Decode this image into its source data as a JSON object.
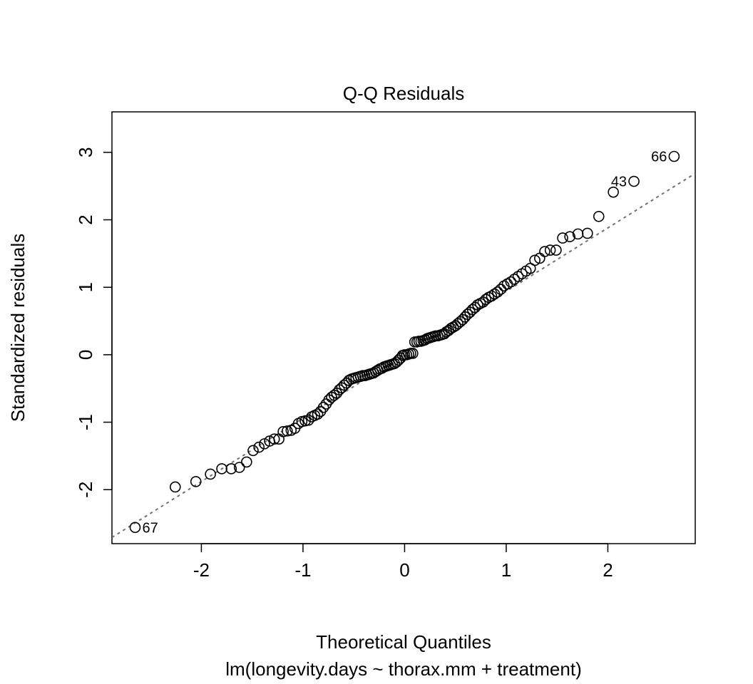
{
  "chart_data": {
    "type": "scatter",
    "title": "Q-Q Residuals",
    "xlabel": "Theoretical Quantiles",
    "subtitle": "lm(longevity.days ~ thorax.mm + treatment)",
    "ylabel": "Standardized residuals",
    "xlim": [
      -2.88,
      2.86
    ],
    "ylim": [
      -2.8,
      3.6
    ],
    "xticks": [
      -2,
      -1,
      0,
      1,
      2
    ],
    "yticks": [
      -2,
      -1,
      0,
      1,
      2,
      3
    ],
    "grid": false,
    "marker": "open-circle",
    "reference_line": {
      "intercept": 0.0,
      "slope": 0.94,
      "style": "dotted",
      "color": "#707070"
    },
    "x": [
      -2.652,
      -2.257,
      -2.054,
      -1.911,
      -1.799,
      -1.706,
      -1.626,
      -1.555,
      -1.491,
      -1.433,
      -1.379,
      -1.329,
      -1.282,
      -1.237,
      -1.195,
      -1.155,
      -1.117,
      -1.08,
      -1.045,
      -1.011,
      -0.978,
      -0.946,
      -0.915,
      -0.885,
      -0.856,
      -0.827,
      -0.799,
      -0.772,
      -0.745,
      -0.719,
      -0.693,
      -0.668,
      -0.643,
      -0.619,
      -0.595,
      -0.571,
      -0.548,
      -0.524,
      -0.502,
      -0.479,
      -0.456,
      -0.434,
      -0.412,
      -0.391,
      -0.369,
      -0.348,
      -0.327,
      -0.305,
      -0.285,
      -0.264,
      -0.243,
      -0.223,
      -0.202,
      -0.182,
      -0.161,
      -0.141,
      -0.121,
      -0.1,
      -0.08,
      -0.06,
      -0.04,
      -0.02,
      0.0,
      0.02,
      0.04,
      0.06,
      0.08,
      0.1,
      0.121,
      0.141,
      0.161,
      0.182,
      0.202,
      0.223,
      0.243,
      0.264,
      0.285,
      0.305,
      0.327,
      0.348,
      0.369,
      0.391,
      0.412,
      0.434,
      0.456,
      0.479,
      0.502,
      0.524,
      0.548,
      0.571,
      0.595,
      0.619,
      0.643,
      0.668,
      0.693,
      0.719,
      0.745,
      0.772,
      0.799,
      0.827,
      0.856,
      0.885,
      0.915,
      0.946,
      0.978,
      1.011,
      1.045,
      1.08,
      1.117,
      1.155,
      1.195,
      1.237,
      1.282,
      1.329,
      1.379,
      1.433,
      1.491,
      1.555,
      1.626,
      1.706,
      1.799,
      1.911,
      2.054,
      2.257,
      2.652
    ],
    "y": [
      -2.56,
      -1.96,
      -1.88,
      -1.77,
      -1.69,
      -1.69,
      -1.67,
      -1.59,
      -1.42,
      -1.37,
      -1.32,
      -1.28,
      -1.25,
      -1.25,
      -1.14,
      -1.13,
      -1.12,
      -1.09,
      -1.02,
      -0.99,
      -0.98,
      -0.97,
      -0.92,
      -0.9,
      -0.88,
      -0.84,
      -0.78,
      -0.73,
      -0.67,
      -0.63,
      -0.6,
      -0.57,
      -0.52,
      -0.49,
      -0.45,
      -0.42,
      -0.38,
      -0.36,
      -0.35,
      -0.34,
      -0.33,
      -0.32,
      -0.31,
      -0.31,
      -0.3,
      -0.29,
      -0.28,
      -0.27,
      -0.25,
      -0.23,
      -0.21,
      -0.2,
      -0.18,
      -0.17,
      -0.16,
      -0.15,
      -0.14,
      -0.13,
      -0.11,
      -0.08,
      -0.05,
      -0.01,
      0.0,
      0.0,
      0.01,
      0.02,
      0.02,
      0.19,
      0.19,
      0.2,
      0.2,
      0.21,
      0.22,
      0.24,
      0.25,
      0.26,
      0.27,
      0.28,
      0.28,
      0.29,
      0.3,
      0.31,
      0.34,
      0.36,
      0.39,
      0.41,
      0.43,
      0.46,
      0.49,
      0.52,
      0.56,
      0.6,
      0.63,
      0.67,
      0.7,
      0.74,
      0.76,
      0.78,
      0.82,
      0.85,
      0.87,
      0.9,
      0.93,
      0.97,
      1.02,
      1.05,
      1.08,
      1.12,
      1.16,
      1.2,
      1.24,
      1.28,
      1.4,
      1.43,
      1.53,
      1.55,
      1.55,
      1.73,
      1.75,
      1.79,
      1.8,
      2.05,
      2.41,
      2.57,
      2.94
    ],
    "annotations": [
      {
        "label": "67",
        "x": -2.652,
        "y": -2.56,
        "side": "right"
      },
      {
        "label": "43",
        "x": 2.257,
        "y": 2.57,
        "side": "left"
      },
      {
        "label": "66",
        "x": 2.652,
        "y": 2.94,
        "side": "left"
      }
    ]
  }
}
